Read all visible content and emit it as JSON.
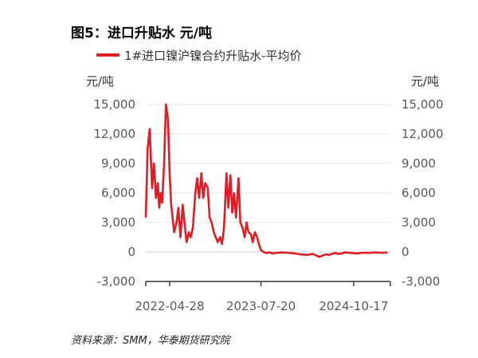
{
  "chart_data": {
    "type": "line",
    "title": "图5：进口升贴水  元/吨",
    "y_unit_left": "元/吨",
    "y_unit_right": "元/吨",
    "yticks": [
      "15,000",
      "12,000",
      "9,000",
      "6,000",
      "3,000",
      "0",
      "-3,000"
    ],
    "ylim": [
      -3000,
      15000
    ],
    "xticks": [
      "2022-04-28",
      "2023-07-20",
      "2024-10-17"
    ],
    "xlim": [
      "2022-01-01",
      "2025-04-15"
    ],
    "grid": true,
    "legend_position": "top",
    "source": "资料来源：SMM，华泰期货研究院",
    "series": [
      {
        "name": "1#进口镍沪镍合约升贴水-平均价",
        "color": "#e01c24",
        "x": [
          "2022-01-01",
          "2022-01-10",
          "2022-01-20",
          "2022-02-01",
          "2022-02-10",
          "2022-02-20",
          "2022-03-01",
          "2022-03-08",
          "2022-03-15",
          "2022-03-22",
          "2022-04-01",
          "2022-04-10",
          "2022-04-20",
          "2022-04-28",
          "2022-05-05",
          "2022-05-12",
          "2022-05-20",
          "2022-06-01",
          "2022-06-10",
          "2022-06-20",
          "2022-07-01",
          "2022-07-10",
          "2022-07-20",
          "2022-08-01",
          "2022-08-10",
          "2022-08-20",
          "2022-09-01",
          "2022-09-10",
          "2022-09-20",
          "2022-10-01",
          "2022-10-10",
          "2022-10-20",
          "2022-11-01",
          "2022-11-10",
          "2022-11-20",
          "2022-12-01",
          "2022-12-10",
          "2022-12-20",
          "2023-01-01",
          "2023-01-10",
          "2023-01-20",
          "2023-02-01",
          "2023-02-10",
          "2023-02-20",
          "2023-03-01",
          "2023-03-10",
          "2023-03-20",
          "2023-04-01",
          "2023-04-10",
          "2023-04-20",
          "2023-05-01",
          "2023-05-10",
          "2023-05-20",
          "2023-06-01",
          "2023-06-10",
          "2023-06-20",
          "2023-07-01",
          "2023-07-10",
          "2023-07-20",
          "2023-08-01",
          "2023-08-15",
          "2023-09-01",
          "2023-09-15",
          "2023-10-01",
          "2023-11-01",
          "2023-12-01",
          "2024-01-01",
          "2024-02-01",
          "2024-03-01",
          "2024-04-01",
          "2024-05-01",
          "2024-06-01",
          "2024-06-20",
          "2024-07-01",
          "2024-07-20",
          "2024-08-01",
          "2024-08-20",
          "2024-09-01",
          "2024-10-01",
          "2024-11-01",
          "2024-12-01",
          "2025-01-01",
          "2025-02-01",
          "2025-03-01",
          "2025-04-01"
        ],
        "y": [
          3500,
          10500,
          12500,
          6500,
          9000,
          5500,
          7000,
          4500,
          6000,
          5000,
          9000,
          15000,
          13500,
          8000,
          5000,
          3500,
          2000,
          3000,
          4500,
          1500,
          4800,
          3000,
          1000,
          2000,
          1500,
          2500,
          6000,
          7500,
          5500,
          8000,
          5500,
          7000,
          6500,
          3500,
          3000,
          2000,
          1500,
          1000,
          1500,
          800,
          2500,
          8000,
          4500,
          7800,
          4000,
          6000,
          3500,
          7500,
          3000,
          2500,
          1500,
          3000,
          2000,
          1800,
          1000,
          2000,
          1500,
          800,
          200,
          0,
          -100,
          -50,
          -150,
          -100,
          -50,
          -80,
          -150,
          -250,
          -300,
          -200,
          -500,
          -250,
          -300,
          -200,
          -100,
          -200,
          -150,
          -50,
          -100,
          -150,
          -80,
          -100,
          -50,
          -80,
          -60
        ]
      }
    ]
  }
}
